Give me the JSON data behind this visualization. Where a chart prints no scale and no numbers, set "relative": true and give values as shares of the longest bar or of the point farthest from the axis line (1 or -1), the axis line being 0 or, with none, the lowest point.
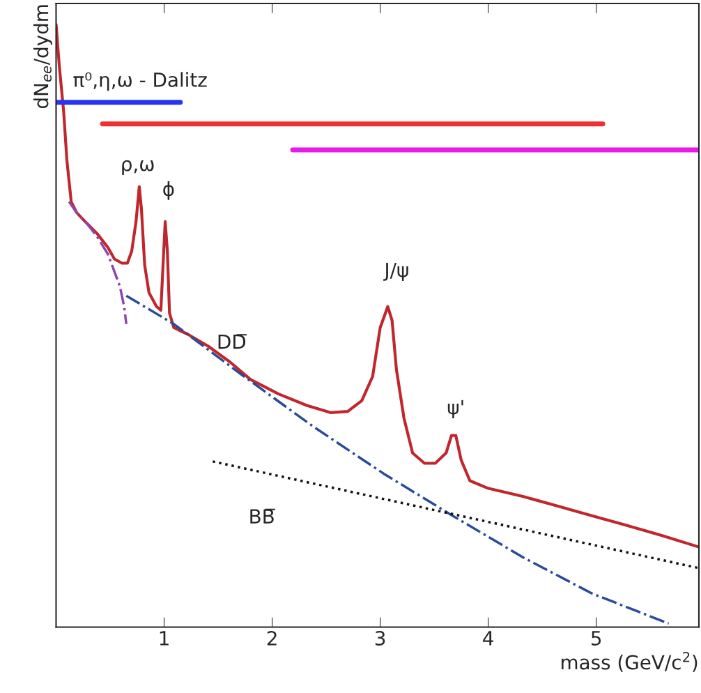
{
  "chart_data": {
    "type": "line",
    "relative": true,
    "xlabel": "mass (GeV/c$^{2}$)",
    "ylabel": "dN$_{ee}$/dydm",
    "xlim": [
      0,
      5.95
    ],
    "xticks": [
      1,
      2,
      3,
      4,
      5
    ],
    "grid": false,
    "legend": false,
    "series": [
      {
        "color": "#c0272d",
        "line_style": "solid",
        "x": [
          0,
          0.03,
          0.07,
          0.1,
          0.14,
          0.19,
          0.28,
          0.38,
          0.48,
          0.54,
          0.61,
          0.66,
          0.7,
          0.74,
          0.77,
          0.79,
          0.82,
          0.86,
          0.93,
          0.97,
          0.99,
          1.01,
          1.03,
          1.05,
          1.09,
          1.22,
          1.41,
          1.61,
          1.8,
          2.06,
          2.32,
          2.54,
          2.7,
          2.83,
          2.93,
          3.0,
          3.07,
          3.11,
          3.15,
          3.22,
          3.3,
          3.41,
          3.51,
          3.61,
          3.66,
          3.7,
          3.75,
          3.83,
          3.99,
          4.32,
          4.64,
          4.96,
          5.28,
          5.61,
          5.95
        ],
        "values": [
          1.0,
          0.931,
          0.856,
          0.775,
          0.706,
          0.688,
          0.671,
          0.653,
          0.63,
          0.611,
          0.604,
          0.604,
          0.624,
          0.673,
          0.731,
          0.694,
          0.601,
          0.555,
          0.532,
          0.526,
          0.601,
          0.673,
          0.624,
          0.521,
          0.497,
          0.486,
          0.466,
          0.44,
          0.411,
          0.387,
          0.368,
          0.356,
          0.358,
          0.376,
          0.416,
          0.497,
          0.532,
          0.509,
          0.428,
          0.347,
          0.289,
          0.272,
          0.272,
          0.289,
          0.318,
          0.318,
          0.277,
          0.243,
          0.231,
          0.217,
          0.201,
          0.185,
          0.169,
          0.152,
          0.133
        ]
      },
      {
        "color": "#8e44ad",
        "line_style": "dashdot",
        "x": [
          0.12,
          0.19,
          0.28,
          0.38,
          0.48,
          0.54,
          0.59,
          0.63,
          0.65
        ],
        "values": [
          0.706,
          0.688,
          0.671,
          0.648,
          0.619,
          0.59,
          0.566,
          0.532,
          0.503
        ]
      },
      {
        "color": "#2a4a9a",
        "line_style": "dashdot",
        "x": [
          0.65,
          1.09,
          1.74,
          2.38,
          3.03,
          3.67,
          4.32,
          4.96,
          5.67
        ],
        "values": [
          0.55,
          0.503,
          0.416,
          0.333,
          0.255,
          0.185,
          0.116,
          0.056,
          0.006
        ]
      },
      {
        "color": "#111111",
        "line_style": "dotted",
        "x": [
          1.45,
          5.95
        ],
        "values": [
          0.275,
          0.098
        ]
      },
      {
        "color": "#2a33f0",
        "line_style": "solid",
        "x": [
          0,
          1.15
        ],
        "values": [
          0.871,
          0.871
        ]
      },
      {
        "color": "#f03030",
        "line_style": "solid",
        "x": [
          0.43,
          5.06
        ],
        "values": [
          0.835,
          0.835
        ]
      },
      {
        "color": "#e81ae8",
        "line_style": "solid",
        "x": [
          2.19,
          5.95
        ],
        "values": [
          0.792,
          0.792
        ]
      }
    ],
    "annotations": [
      "π⁰,η,ω - Dalitz",
      "ρ,ω",
      "ϕ",
      "J/ψ",
      "DD̅",
      "ψ'",
      "BB̅"
    ]
  }
}
